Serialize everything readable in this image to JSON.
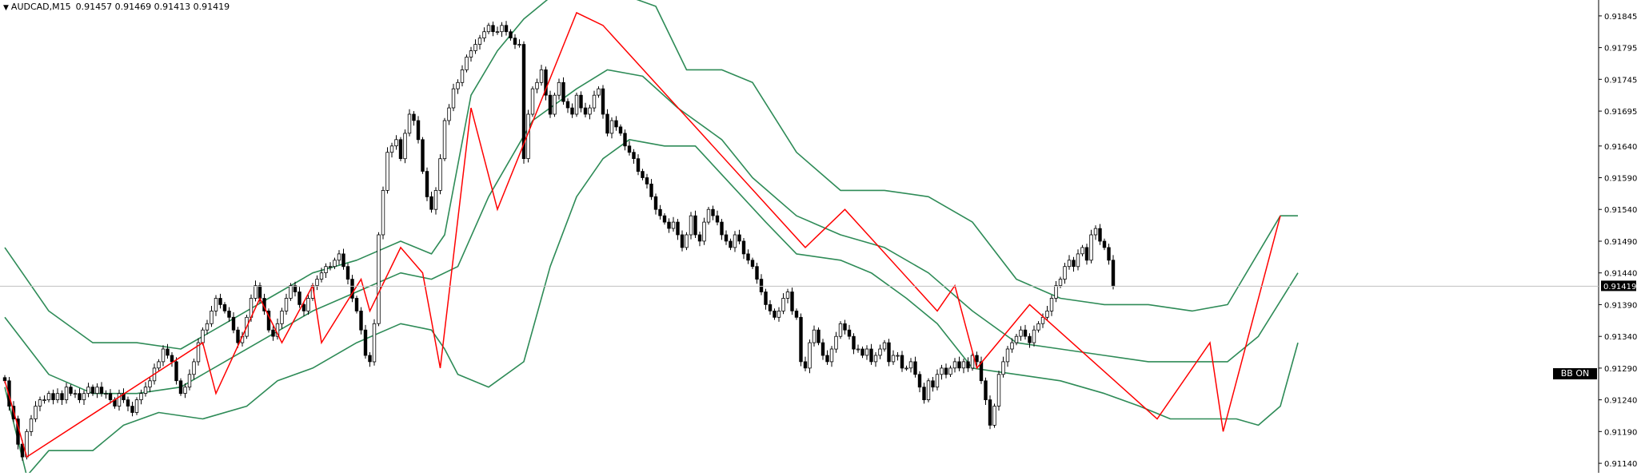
{
  "header": {
    "menu_icon": "triangle-down-icon",
    "symbol": "AUDCAD,M15",
    "ohlc": "0.91457 0.91469 0.91413 0.91419"
  },
  "indicator_button": {
    "label": "BB ON"
  },
  "colors": {
    "background": "#ffffff",
    "zigzag": "#ff0000",
    "bands": "#2e8b57",
    "candle_outline": "#000000",
    "bull_fill": "#ffffff",
    "bear_fill": "#000000",
    "price_line": "#c0c0c0",
    "current_price_box": "#000000"
  },
  "chart_data": {
    "type": "candlestick",
    "symbol": "AUDCAD",
    "timeframe": "M15",
    "ylim": [
      0.91125,
      0.9187
    ],
    "y_ticks": [
      "0.91845",
      "0.91795",
      "0.91745",
      "0.91695",
      "0.91640",
      "0.91590",
      "0.91540",
      "0.91490",
      "0.91440",
      "0.91390",
      "0.91340",
      "0.91290",
      "0.91240",
      "0.91190",
      "0.91140"
    ],
    "current_price": "0.91419",
    "grid": false,
    "series": {
      "candles_close": [
        0.9127,
        0.9123,
        0.9121,
        0.9117,
        0.9115,
        0.9119,
        0.9121,
        0.9123,
        0.9124,
        0.9124,
        0.9125,
        0.9124,
        0.9125,
        0.9124,
        0.9126,
        0.9125,
        0.9125,
        0.9124,
        0.9125,
        0.9126,
        0.9125,
        0.9126,
        0.9125,
        0.9125,
        0.9124,
        0.9123,
        0.9125,
        0.9124,
        0.9123,
        0.9122,
        0.9124,
        0.9125,
        0.9126,
        0.9127,
        0.9129,
        0.913,
        0.9132,
        0.9131,
        0.913,
        0.9127,
        0.9125,
        0.9126,
        0.9128,
        0.913,
        0.9133,
        0.9135,
        0.9136,
        0.9138,
        0.914,
        0.9139,
        0.9138,
        0.9137,
        0.9135,
        0.9133,
        0.9134,
        0.9137,
        0.914,
        0.9142,
        0.914,
        0.9138,
        0.9135,
        0.9134,
        0.9136,
        0.9138,
        0.914,
        0.9142,
        0.9141,
        0.9139,
        0.9138,
        0.914,
        0.9142,
        0.9143,
        0.9144,
        0.9145,
        0.9145,
        0.9146,
        0.9147,
        0.9145,
        0.9143,
        0.914,
        0.9138,
        0.9135,
        0.9131,
        0.913,
        0.9136,
        0.915,
        0.9157,
        0.9163,
        0.9164,
        0.9165,
        0.9162,
        0.9166,
        0.9169,
        0.9168,
        0.9165,
        0.916,
        0.9156,
        0.9154,
        0.9157,
        0.9162,
        0.9168,
        0.917,
        0.9173,
        0.9174,
        0.9176,
        0.9178,
        0.9179,
        0.918,
        0.9181,
        0.9182,
        0.9183,
        0.9182,
        0.9182,
        0.9183,
        0.9182,
        0.9181,
        0.918,
        0.918,
        0.9162,
        0.9169,
        0.9173,
        0.9174,
        0.9176,
        0.9172,
        0.9169,
        0.9172,
        0.9174,
        0.9171,
        0.917,
        0.9169,
        0.9172,
        0.917,
        0.9169,
        0.917,
        0.9172,
        0.9173,
        0.9169,
        0.9166,
        0.9168,
        0.9167,
        0.9166,
        0.9164,
        0.9163,
        0.9162,
        0.916,
        0.9159,
        0.9158,
        0.9156,
        0.9154,
        0.9153,
        0.9152,
        0.9151,
        0.9152,
        0.915,
        0.9148,
        0.915,
        0.9153,
        0.915,
        0.9149,
        0.9152,
        0.9154,
        0.9153,
        0.9152,
        0.915,
        0.9149,
        0.9148,
        0.915,
        0.9149,
        0.9147,
        0.9146,
        0.9145,
        0.9143,
        0.9141,
        0.9139,
        0.9138,
        0.9137,
        0.9138,
        0.914,
        0.9141,
        0.9138,
        0.9137,
        0.913,
        0.9129,
        0.9133,
        0.9135,
        0.9133,
        0.9131,
        0.913,
        0.9132,
        0.9134,
        0.9136,
        0.9135,
        0.9134,
        0.9132,
        0.9132,
        0.9131,
        0.9132,
        0.913,
        0.9131,
        0.9132,
        0.9133,
        0.913,
        0.9131,
        0.9131,
        0.9129,
        0.9129,
        0.913,
        0.9128,
        0.9126,
        0.9124,
        0.9127,
        0.9126,
        0.9128,
        0.9129,
        0.9128,
        0.9129,
        0.913,
        0.9129,
        0.913,
        0.9129,
        0.9131,
        0.913,
        0.9127,
        0.9124,
        0.912,
        0.9123,
        0.9128,
        0.913,
        0.9132,
        0.9133,
        0.9134,
        0.9135,
        0.9134,
        0.9133,
        0.9135,
        0.9136,
        0.9137,
        0.9138,
        0.914,
        0.9142,
        0.9143,
        0.9145,
        0.9146,
        0.9145,
        0.9147,
        0.9148,
        0.9146,
        0.915,
        0.9151,
        0.9149,
        0.9148,
        0.9146,
        0.91419
      ],
      "zigzag": [
        [
          0,
          0.9127
        ],
        [
          5,
          0.9115
        ],
        [
          45,
          0.9133
        ],
        [
          48,
          0.9125
        ],
        [
          58,
          0.914
        ],
        [
          63,
          0.9133
        ],
        [
          70,
          0.9142
        ],
        [
          72,
          0.9133
        ],
        [
          81,
          0.9143
        ],
        [
          83,
          0.9138
        ],
        [
          90,
          0.9148
        ],
        [
          95,
          0.9144
        ],
        [
          99,
          0.9129
        ],
        [
          106,
          0.917
        ],
        [
          112,
          0.9154
        ],
        [
          130,
          0.9185
        ],
        [
          136,
          0.9183
        ],
        [
          182,
          0.9148
        ],
        [
          191,
          0.9154
        ],
        [
          212,
          0.9138
        ],
        [
          216,
          0.9142
        ],
        [
          221,
          0.9129
        ],
        [
          233,
          0.9139
        ],
        [
          262,
          0.9121
        ],
        [
          274,
          0.9133
        ],
        [
          277,
          0.9119
        ],
        [
          290,
          0.9153
        ]
      ],
      "bb_upper": [
        [
          0,
          0.9148
        ],
        [
          10,
          0.9138
        ],
        [
          20,
          0.9133
        ],
        [
          30,
          0.9133
        ],
        [
          40,
          0.9132
        ],
        [
          50,
          0.9136
        ],
        [
          60,
          0.914
        ],
        [
          70,
          0.9144
        ],
        [
          80,
          0.9146
        ],
        [
          90,
          0.9149
        ],
        [
          97,
          0.9147
        ],
        [
          100,
          0.915
        ],
        [
          106,
          0.9172
        ],
        [
          112,
          0.9179
        ],
        [
          118,
          0.9184
        ],
        [
          125,
          0.9188
        ],
        [
          133,
          0.9188
        ],
        [
          140,
          0.9188
        ],
        [
          148,
          0.9186
        ],
        [
          155,
          0.9176
        ],
        [
          163,
          0.9176
        ],
        [
          170,
          0.9174
        ],
        [
          180,
          0.9163
        ],
        [
          190,
          0.9157
        ],
        [
          200,
          0.9157
        ],
        [
          210,
          0.9156
        ],
        [
          220,
          0.9152
        ],
        [
          230,
          0.9143
        ],
        [
          240,
          0.914
        ],
        [
          250,
          0.9139
        ],
        [
          260,
          0.9139
        ],
        [
          270,
          0.9138
        ],
        [
          278,
          0.9139
        ],
        [
          290,
          0.9153
        ],
        [
          294,
          0.9153
        ]
      ],
      "bb_middle": [
        [
          0,
          0.9137
        ],
        [
          10,
          0.9128
        ],
        [
          20,
          0.9125
        ],
        [
          30,
          0.9125
        ],
        [
          40,
          0.9126
        ],
        [
          50,
          0.913
        ],
        [
          60,
          0.9134
        ],
        [
          70,
          0.9138
        ],
        [
          80,
          0.9141
        ],
        [
          90,
          0.9144
        ],
        [
          97,
          0.9143
        ],
        [
          103,
          0.9145
        ],
        [
          110,
          0.9156
        ],
        [
          120,
          0.9168
        ],
        [
          130,
          0.9173
        ],
        [
          137,
          0.9176
        ],
        [
          145,
          0.9175
        ],
        [
          153,
          0.917
        ],
        [
          163,
          0.9165
        ],
        [
          170,
          0.9159
        ],
        [
          180,
          0.9153
        ],
        [
          190,
          0.915
        ],
        [
          200,
          0.9148
        ],
        [
          210,
          0.9144
        ],
        [
          220,
          0.9138
        ],
        [
          230,
          0.9133
        ],
        [
          240,
          0.9132
        ],
        [
          250,
          0.9131
        ],
        [
          260,
          0.913
        ],
        [
          270,
          0.913
        ],
        [
          278,
          0.913
        ],
        [
          285,
          0.9134
        ],
        [
          294,
          0.9144
        ]
      ],
      "bb_lower": [
        [
          0,
          0.9126
        ],
        [
          5,
          0.9112
        ],
        [
          10,
          0.9116
        ],
        [
          20,
          0.9116
        ],
        [
          27,
          0.912
        ],
        [
          35,
          0.9122
        ],
        [
          45,
          0.9121
        ],
        [
          55,
          0.9123
        ],
        [
          62,
          0.9127
        ],
        [
          70,
          0.9129
        ],
        [
          80,
          0.9133
        ],
        [
          90,
          0.9136
        ],
        [
          97,
          0.9135
        ],
        [
          100,
          0.9132
        ],
        [
          103,
          0.9128
        ],
        [
          110,
          0.9126
        ],
        [
          118,
          0.913
        ],
        [
          124,
          0.9145
        ],
        [
          130,
          0.9156
        ],
        [
          136,
          0.9162
        ],
        [
          142,
          0.9165
        ],
        [
          150,
          0.9164
        ],
        [
          157,
          0.9164
        ],
        [
          165,
          0.9158
        ],
        [
          173,
          0.9152
        ],
        [
          180,
          0.9147
        ],
        [
          190,
          0.9146
        ],
        [
          197,
          0.9144
        ],
        [
          205,
          0.914
        ],
        [
          212,
          0.9136
        ],
        [
          220,
          0.9129
        ],
        [
          230,
          0.9128
        ],
        [
          240,
          0.9127
        ],
        [
          250,
          0.9125
        ],
        [
          258,
          0.9123
        ],
        [
          265,
          0.9121
        ],
        [
          272,
          0.9121
        ],
        [
          280,
          0.9121
        ],
        [
          285,
          0.912
        ],
        [
          290,
          0.9123
        ],
        [
          294,
          0.9133
        ]
      ]
    }
  }
}
